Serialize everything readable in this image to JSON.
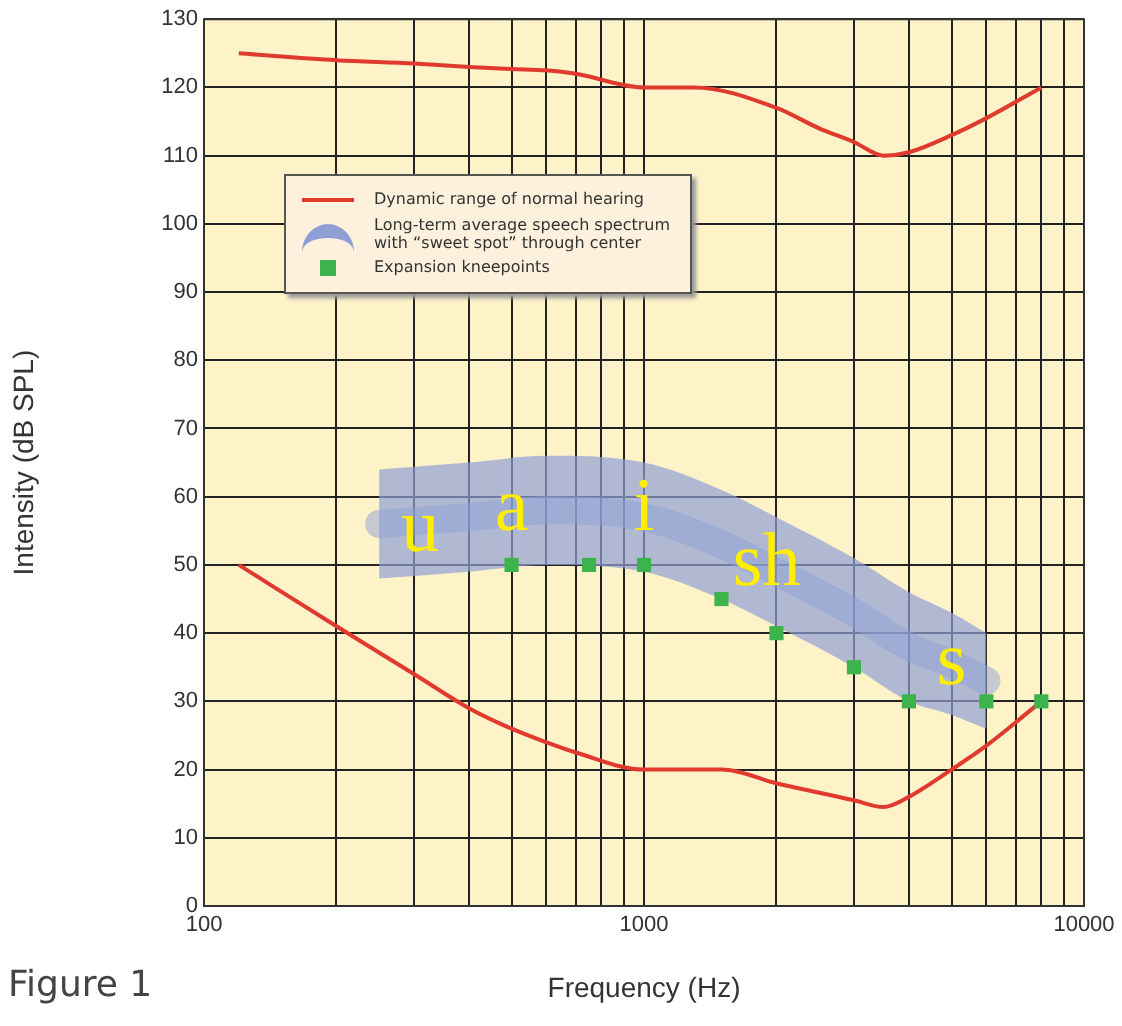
{
  "chart_data": {
    "type": "line",
    "xlabel": "Frequency (Hz)",
    "ylabel": "Intensity (dB SPL)",
    "log": "x",
    "xlim": [
      100,
      10000
    ],
    "ylim": [
      0,
      130
    ],
    "xticks": [
      100,
      {
        "value": 200,
        "label": null
      },
      {
        "value": 300,
        "label": null
      },
      {
        "value": 400,
        "label": null
      },
      {
        "value": 500,
        "label": null
      },
      {
        "value": 600,
        "label": null
      },
      {
        "value": 700,
        "label": null
      },
      {
        "value": 800,
        "label": null
      },
      {
        "value": 900,
        "label": null
      },
      1000,
      {
        "value": 2000,
        "label": null
      },
      {
        "value": 3000,
        "label": null
      },
      {
        "value": 4000,
        "label": null
      },
      {
        "value": 5000,
        "label": null
      },
      {
        "value": 6000,
        "label": null
      },
      {
        "value": 7000,
        "label": null
      },
      {
        "value": 8000,
        "label": null
      },
      {
        "value": 9000,
        "label": null
      },
      10000
    ],
    "yticks": [
      0,
      10,
      20,
      30,
      40,
      50,
      60,
      70,
      80,
      90,
      100,
      110,
      120,
      130
    ],
    "grid": true,
    "legend": "top left",
    "series": [
      {
        "name": "Dynamic range of normal hearing",
        "color": "#e03a2e",
        "x": [
          120,
          200,
          300,
          400,
          500,
          600,
          700,
          1000,
          1300,
          2000,
          2500,
          3000,
          3500,
          4000,
          5000,
          6000,
          8000
        ],
        "values": [
          125,
          124,
          123.5,
          123,
          122.7,
          122.5,
          122,
          120,
          120,
          117,
          114,
          112,
          110,
          110.5,
          113,
          115.5,
          120
        ]
      },
      {
        "color": "#e03a2e",
        "x": [
          120,
          200,
          300,
          400,
          500,
          600,
          700,
          1000,
          1500,
          2000,
          3000,
          3500,
          4000,
          5000,
          6000,
          8000
        ],
        "values": [
          50,
          41,
          34,
          29,
          26,
          24,
          22.5,
          20,
          20,
          18,
          15.5,
          14.5,
          16,
          20,
          23.5,
          30
        ]
      },
      {
        "name": "Long-term average speech spectrum with “sweet spot” through center",
        "color": "#8f9fd6",
        "x": [
          250,
          400,
          600,
          1000,
          1500,
          2000,
          3000,
          4000,
          5000,
          6000
        ],
        "values": [
          56,
          57,
          58,
          57,
          53,
          49,
          43,
          38,
          35.5,
          33
        ],
        "lower": [
          48,
          49,
          50,
          49,
          45,
          41,
          35,
          30,
          28,
          26
        ],
        "upper": [
          64,
          65,
          66,
          65,
          61,
          57,
          51,
          46,
          43,
          40
        ]
      },
      {
        "name": "Expansion kneepoints",
        "type": "scatter",
        "marker": "square",
        "color": "#3cb44b",
        "x": [
          500,
          750,
          1000,
          1500,
          2000,
          3000,
          4000,
          6000,
          8000
        ],
        "values": [
          50,
          50,
          50,
          45,
          40,
          35,
          30,
          30,
          30
        ]
      }
    ],
    "annotations": [
      {
        "text": "u",
        "x": 310,
        "y": 55
      },
      {
        "text": "a",
        "x": 500,
        "y": 58
      },
      {
        "text": "i",
        "x": 1000,
        "y": 58
      },
      {
        "text": "sh",
        "x": 1900,
        "y": 50
      },
      {
        "text": "s",
        "x": 5000,
        "y": 35.5
      },
      "Figure 1"
    ]
  }
}
